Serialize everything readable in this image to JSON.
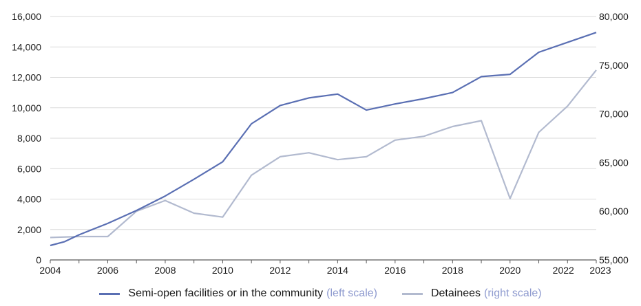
{
  "colors": {
    "series1": "#5a6fb3",
    "series2": "#b2bacf",
    "grid": "#d9d9d9",
    "axis": "#595959",
    "scale_note": "#8f9bcf"
  },
  "legend": {
    "items": [
      {
        "label": "Semi-open facilities or in the community",
        "note": "(left scale)"
      },
      {
        "label": "Detainees",
        "note": "(right scale)"
      }
    ]
  },
  "chart_data": {
    "type": "line",
    "title": "",
    "xlabel": "",
    "ylabel": "",
    "legend_position": "bottom",
    "grid": "horizontal",
    "xlim": [
      2004,
      2023
    ],
    "x_ticks": [
      "2004",
      "2006",
      "2008",
      "2010",
      "2012",
      "2014",
      "2016",
      "2018",
      "2020",
      "2022",
      "2023"
    ],
    "y_left": {
      "lim": [
        0,
        16000
      ],
      "ticks": [
        "0",
        "2,000",
        "4,000",
        "6,000",
        "8,000",
        "10,000",
        "12,000",
        "14,000",
        "16,000"
      ]
    },
    "y_right": {
      "lim": [
        55000,
        80000
      ],
      "ticks": [
        "55,000",
        "60,000",
        "65,000",
        "70,000",
        "75,000",
        "80,000"
      ]
    },
    "series": [
      {
        "name": "Semi-open facilities or in the community",
        "axis": "left",
        "points": [
          [
            2004,
            950
          ],
          [
            2004.5,
            1200
          ],
          [
            2005,
            1650
          ],
          [
            2006,
            2400
          ],
          [
            2007,
            3250
          ],
          [
            2008,
            4200
          ],
          [
            2009,
            5300
          ],
          [
            2010,
            6450
          ],
          [
            2011,
            8950
          ],
          [
            2012,
            10150
          ],
          [
            2013,
            10650
          ],
          [
            2014,
            10900
          ],
          [
            2015,
            9850
          ],
          [
            2016,
            10250
          ],
          [
            2017,
            10600
          ],
          [
            2018,
            11000
          ],
          [
            2019,
            12050
          ],
          [
            2020,
            12200
          ],
          [
            2021,
            13650
          ],
          [
            2022,
            14300
          ],
          [
            2023,
            14950
          ]
        ]
      },
      {
        "name": "Detainees",
        "axis": "right",
        "points": [
          [
            2004,
            57300
          ],
          [
            2005,
            57400
          ],
          [
            2006,
            57400
          ],
          [
            2007,
            60000
          ],
          [
            2008,
            61100
          ],
          [
            2009,
            59800
          ],
          [
            2010,
            59400
          ],
          [
            2011,
            63700
          ],
          [
            2012,
            65600
          ],
          [
            2013,
            66000
          ],
          [
            2014,
            65300
          ],
          [
            2015,
            65600
          ],
          [
            2016,
            67300
          ],
          [
            2017,
            67700
          ],
          [
            2018,
            68700
          ],
          [
            2019,
            69300
          ],
          [
            2020,
            61300
          ],
          [
            2021,
            68100
          ],
          [
            2022,
            70800
          ],
          [
            2023,
            74500
          ]
        ]
      }
    ]
  }
}
